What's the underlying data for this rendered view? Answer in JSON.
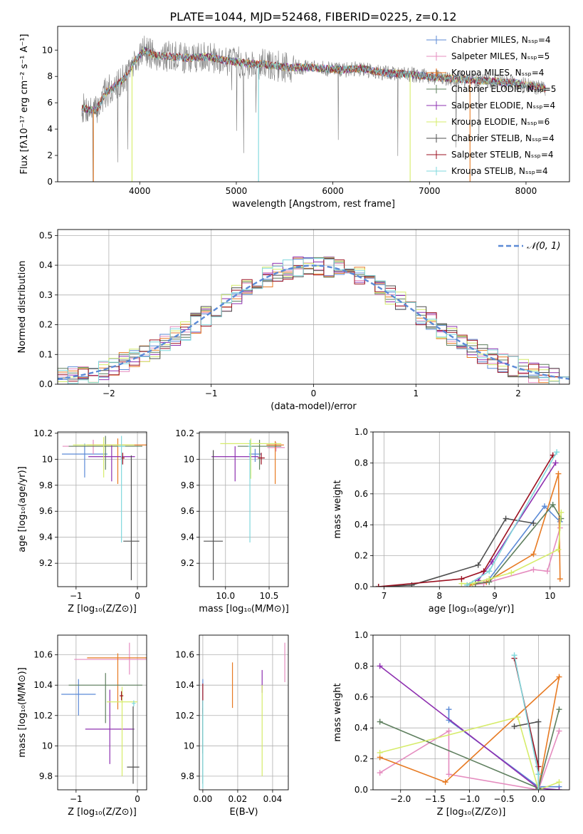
{
  "figure": {
    "title": "PLATE=1044, MJD=52468, FIBERID=0225, z=0.12"
  },
  "colors": {
    "Chabrier MILES": "#5b8ad6",
    "Salpeter MILES": "#e58cbf",
    "Kroupa MILES": "#e77a22",
    "Chabrier ELODIE": "#5e7f5e",
    "Salpeter ELODIE": "#8e30b0",
    "Kroupa ELODIE": "#d6ec6a",
    "Chabrier STELIB": "#4f4f4f",
    "Salpeter STELIB": "#9b1020",
    "Kroupa STELIB": "#7fd8dc",
    "normal_curve": "#5b8ad6"
  },
  "chart_data": [
    {
      "id": "spectrum",
      "type": "line",
      "title": "PLATE=1044, MJD=52468, FIBERID=0225, z=0.12",
      "xlabel": "wavelength [Angstrom, rest frame]",
      "ylabel": "Flux [fλ10⁻¹⁷ erg cm⁻² s⁻¹ A⁻¹]",
      "xlim": [
        3150,
        8450
      ],
      "ylim": [
        0,
        11.8
      ],
      "xticks": [
        4000,
        5000,
        6000,
        7000,
        8000
      ],
      "yticks": [
        0,
        2,
        4,
        6,
        8,
        10
      ],
      "grid": false,
      "legend_position": "top-right",
      "legend": [
        {
          "label": "Chabrier MILES, Nₛₛₚ=4",
          "series": "Chabrier MILES"
        },
        {
          "label": "Salpeter MILES, Nₛₛₚ=5",
          "series": "Salpeter MILES"
        },
        {
          "label": "Kroupa MILES, Nₛₛₚ=4",
          "series": "Kroupa MILES"
        },
        {
          "label": "Chabrier ELODIE, Nₛₛₚ=5",
          "series": "Chabrier ELODIE"
        },
        {
          "label": "Salpeter ELODIE, Nₛₛₚ=4",
          "series": "Salpeter ELODIE"
        },
        {
          "label": "Kroupa ELODIE, Nₛₛₚ=6",
          "series": "Kroupa ELODIE"
        },
        {
          "label": "Chabrier STELIB, Nₛₛₚ=4",
          "series": "Chabrier STELIB"
        },
        {
          "label": "Salpeter STELIB, Nₛₛₚ=4",
          "series": "Salpeter STELIB"
        },
        {
          "label": "Kroupa STELIB, Nₛₛₚ=4",
          "series": "Kroupa STELIB"
        }
      ],
      "continuum_x": [
        3400,
        3550,
        3650,
        3750,
        3850,
        3950,
        4050,
        4150,
        4300,
        4500,
        4700,
        4900,
        5100,
        5300,
        5500,
        5700,
        5900,
        6100,
        6300,
        6500,
        6700,
        6900,
        7100,
        7300,
        7500,
        7700,
        7900,
        8100,
        8200
      ],
      "continuum_y": [
        5.6,
        5.4,
        6.8,
        7.3,
        7.9,
        9.2,
        10.0,
        9.6,
        9.5,
        9.4,
        9.5,
        9.2,
        9.0,
        8.9,
        8.7,
        8.7,
        8.6,
        8.5,
        8.6,
        8.3,
        8.2,
        8.1,
        7.9,
        7.8,
        7.7,
        7.6,
        7.5,
        7.2,
        7.1
      ],
      "model_dips": [
        {
          "series": "Kroupa MILES",
          "x": 3520,
          "y": 0
        },
        {
          "series": "Kroupa MILES",
          "x": 7420,
          "y": 0
        },
        {
          "series": "Kroupa ELODIE",
          "x": 3920,
          "y": 0
        },
        {
          "series": "Kroupa ELODIE",
          "x": 6800,
          "y": 0
        },
        {
          "series": "Kroupa STELIB",
          "x": 5230,
          "y": 0
        }
      ]
    },
    {
      "id": "residual-histogram",
      "type": "line",
      "xlabel": "(data-model)/error",
      "ylabel": "Normed distribution",
      "xlim": [
        -2.5,
        2.5
      ],
      "ylim": [
        0,
        0.52
      ],
      "xticks": [
        -2,
        -1,
        0,
        1,
        2
      ],
      "xtick_labels": [
        "−2",
        "−1",
        "0",
        "1",
        "2"
      ],
      "yticks": [
        0.0,
        0.1,
        0.2,
        0.3,
        0.4,
        0.5
      ],
      "ytick_labels": [
        "0.0",
        "0.1",
        "0.2",
        "0.3",
        "0.4",
        "0.5"
      ],
      "grid": true,
      "legend_position": "top-right",
      "legend": [
        {
          "label": "𝒩(0, 1)",
          "series": "normal_curve",
          "style": "dashed"
        }
      ],
      "bin_width": 0.1,
      "curve": {
        "name": "𝒩(0, 1)",
        "mean": 0,
        "sigma": 1
      }
    },
    {
      "id": "age-vs-metallicity",
      "type": "scatter",
      "xlabel": "Z [log₁₀(Z/Z⊙)]",
      "ylabel": "age  [log₁₀(age/yr)]",
      "xlim": [
        -1.3,
        0.15
      ],
      "ylim": [
        9.02,
        10.21
      ],
      "xticks": [
        -1,
        0
      ],
      "xtick_labels": [
        "−1",
        "0"
      ],
      "yticks": [
        9.2,
        9.4,
        9.6,
        9.8,
        10.0,
        10.2
      ],
      "grid": true,
      "points": [
        {
          "series": "Chabrier MILES",
          "x": -0.86,
          "y": 10.04,
          "xerr": 0.37,
          "yerr_lo": 0.18,
          "yerr_hi": 0.08
        },
        {
          "series": "Salpeter MILES",
          "x": -0.72,
          "y": 10.1,
          "xerr": 0.5,
          "yerr_lo": 0.06,
          "yerr_hi": 0.05
        },
        {
          "series": "Kroupa MILES",
          "x": -0.32,
          "y": 10.11,
          "xerr": 0.5,
          "yerr_lo": 0.3,
          "yerr_hi": 0.05
        },
        {
          "series": "Chabrier ELODIE",
          "x": -0.52,
          "y": 10.1,
          "xerr": 0.6,
          "yerr_lo": 0.18,
          "yerr_hi": 0.08
        },
        {
          "series": "Salpeter ELODIE",
          "x": -0.42,
          "y": 10.02,
          "xerr": 0.38,
          "yerr_lo": 0.19,
          "yerr_hi": 0.09
        },
        {
          "series": "Kroupa ELODIE",
          "x": -0.55,
          "y": 10.11,
          "xerr": 0.5,
          "yerr_lo": 0.25,
          "yerr_hi": 0.06
        },
        {
          "series": "Chabrier STELIB",
          "x": -0.1,
          "y": 9.37,
          "xerr": 0.13,
          "yerr_lo": 0.3,
          "yerr_hi": 0.66
        },
        {
          "series": "Salpeter STELIB",
          "x": -0.24,
          "y": 10.01,
          "xerr": 0.03,
          "yerr_lo": 0.05,
          "yerr_hi": 0.04
        },
        {
          "series": "Kroupa STELIB",
          "x": -0.26,
          "y": 10.1,
          "xerr": 0.06,
          "yerr_lo": 0.74,
          "yerr_hi": 0.08
        }
      ]
    },
    {
      "id": "age-vs-mass",
      "type": "scatter",
      "xlabel": "mass [log₁₀(M/M⊙)]",
      "ylabel": "",
      "xlim": [
        9.7,
        10.72
      ],
      "ylim": [
        9.02,
        10.21
      ],
      "xticks": [
        10.0,
        10.5
      ],
      "xtick_labels": [
        "10.0",
        "10.5"
      ],
      "yticks": [
        9.2,
        9.4,
        9.6,
        9.8,
        10.0,
        10.2
      ],
      "grid": true,
      "points": [
        {
          "series": "Chabrier MILES",
          "x": 10.34,
          "y": 10.04,
          "xerr": 0.07,
          "yerr_lo": 0.06,
          "yerr_hi": 0.04
        },
        {
          "series": "Salpeter MILES",
          "x": 10.58,
          "y": 10.09,
          "xerr": 0.1,
          "yerr_lo": 0.03,
          "yerr_hi": 0.04
        },
        {
          "series": "Kroupa MILES",
          "x": 10.57,
          "y": 10.11,
          "xerr": 0.1,
          "yerr_lo": 0.3,
          "yerr_hi": 0.03
        },
        {
          "series": "Chabrier ELODIE",
          "x": 10.39,
          "y": 10.1,
          "xerr": 0.25,
          "yerr_lo": 0.18,
          "yerr_hi": 0.05
        },
        {
          "series": "Salpeter ELODIE",
          "x": 10.11,
          "y": 10.02,
          "xerr": 0.27,
          "yerr_lo": 0.19,
          "yerr_hi": 0.08
        },
        {
          "series": "Kroupa ELODIE",
          "x": 10.29,
          "y": 10.12,
          "xerr": 0.35,
          "yerr_lo": 0.27,
          "yerr_hi": 0.04
        },
        {
          "series": "Chabrier STELIB",
          "x": 9.86,
          "y": 9.37,
          "xerr": 0.11,
          "yerr_lo": 0.3,
          "yerr_hi": 0.7
        },
        {
          "series": "Salpeter STELIB",
          "x": 10.41,
          "y": 10.01,
          "xerr": 0.04,
          "yerr_lo": 0.05,
          "yerr_hi": 0.04
        },
        {
          "series": "Kroupa STELIB",
          "x": 10.28,
          "y": 10.1,
          "xerr": 0.02,
          "yerr_lo": 0.74,
          "yerr_hi": 0.05
        }
      ]
    },
    {
      "id": "mass-weight-vs-age",
      "type": "line",
      "xlabel": "age  [log₁₀(age/yr)]",
      "ylabel": "mass weight",
      "xlim": [
        6.8,
        10.35
      ],
      "ylim": [
        0,
        1.0
      ],
      "xticks": [
        7,
        8,
        9,
        10
      ],
      "yticks": [
        0.0,
        0.2,
        0.4,
        0.6,
        0.8,
        1.0
      ],
      "ytick_labels": [
        "0.0",
        "0.2",
        "0.4",
        "0.6",
        "0.8",
        "1.0"
      ],
      "grid": true,
      "series": [
        {
          "series": "Chabrier MILES",
          "x": [
            8.6,
            8.9,
            9.9,
            10.18
          ],
          "y": [
            0.02,
            0.05,
            0.52,
            0.42
          ]
        },
        {
          "series": "Salpeter MILES",
          "x": [
            8.5,
            8.8,
            9.7,
            9.95,
            10.18
          ],
          "y": [
            0.01,
            0.02,
            0.11,
            0.1,
            0.38
          ]
        },
        {
          "series": "Kroupa MILES",
          "x": [
            8.55,
            8.85,
            9.7,
            10.15,
            10.18
          ],
          "y": [
            0.01,
            0.03,
            0.21,
            0.73,
            0.05
          ]
        },
        {
          "series": "Chabrier ELODIE",
          "x": [
            8.65,
            8.9,
            10.05,
            10.2
          ],
          "y": [
            0.02,
            0.03,
            0.53,
            0.44
          ]
        },
        {
          "series": "Salpeter ELODIE",
          "x": [
            8.7,
            8.95,
            10.1
          ],
          "y": [
            0.04,
            0.16,
            0.8
          ]
        },
        {
          "series": "Kroupa ELODIE",
          "x": [
            8.4,
            8.6,
            8.9,
            9.3,
            10.15,
            10.2
          ],
          "y": [
            0.02,
            0.02,
            0.05,
            0.09,
            0.24,
            0.48
          ]
        },
        {
          "series": "Chabrier STELIB",
          "x": [
            6.9,
            7.5,
            8.7,
            9.2,
            9.7
          ],
          "y": [
            0.0,
            0.01,
            0.14,
            0.44,
            0.41
          ]
        },
        {
          "series": "Salpeter STELIB",
          "x": [
            6.9,
            8.4,
            8.8,
            10.05
          ],
          "y": [
            0.0,
            0.05,
            0.1,
            0.85
          ]
        },
        {
          "series": "Kroupa STELIB",
          "x": [
            8.5,
            8.9,
            10.12
          ],
          "y": [
            0.01,
            0.1,
            0.87
          ]
        }
      ]
    },
    {
      "id": "mass-vs-metallicity",
      "type": "scatter",
      "xlabel": "Z [log₁₀(Z/Z⊙)]",
      "ylabel": "mass [log₁₀(M/M⊙)]",
      "xlim": [
        -1.3,
        0.15
      ],
      "ylim": [
        9.71,
        10.73
      ],
      "xticks": [
        -1,
        0
      ],
      "xtick_labels": [
        "−1",
        "0"
      ],
      "yticks": [
        9.8,
        10.0,
        10.2,
        10.4,
        10.6
      ],
      "grid": true,
      "points": [
        {
          "series": "Chabrier MILES",
          "x": -0.96,
          "y": 10.34,
          "xerr": 0.28,
          "yerr_lo": 0.14,
          "yerr_hi": 0.1
        },
        {
          "series": "Salpeter MILES",
          "x": -0.13,
          "y": 10.57,
          "xerr": 0.9,
          "yerr_lo": 0.1,
          "yerr_hi": 0.11
        },
        {
          "series": "Kroupa MILES",
          "x": -0.32,
          "y": 10.58,
          "xerr": 0.5,
          "yerr_lo": 0.34,
          "yerr_hi": 0.03
        },
        {
          "series": "Chabrier ELODIE",
          "x": -0.52,
          "y": 10.4,
          "xerr": 0.6,
          "yerr_lo": 0.25,
          "yerr_hi": 0.08
        },
        {
          "series": "Salpeter ELODIE",
          "x": -0.45,
          "y": 10.11,
          "xerr": 0.4,
          "yerr_lo": 0.23,
          "yerr_hi": 0.26
        },
        {
          "series": "Kroupa ELODIE",
          "x": -0.25,
          "y": 10.29,
          "xerr": 0.25,
          "yerr_lo": 0.49,
          "yerr_hi": 0.1
        },
        {
          "series": "Chabrier STELIB",
          "x": -0.07,
          "y": 9.86,
          "xerr": 0.1,
          "yerr_lo": 0.11,
          "yerr_hi": 0.4
        },
        {
          "series": "Salpeter STELIB",
          "x": -0.26,
          "y": 10.33,
          "xerr": 0.03,
          "yerr_lo": 0.03,
          "yerr_hi": 0.03
        },
        {
          "series": "Kroupa STELIB",
          "x": -0.06,
          "y": 10.28,
          "xerr": 0.03,
          "yerr_lo": 0.02,
          "yerr_hi": 0.02
        }
      ]
    },
    {
      "id": "mass-vs-extinction",
      "type": "scatter",
      "xlabel": "E(B-V)",
      "ylabel": "",
      "xlim": [
        -0.002,
        0.049
      ],
      "ylim": [
        9.71,
        10.73
      ],
      "xticks": [
        0.0,
        0.02,
        0.04
      ],
      "xtick_labels": [
        "0.00",
        "0.02",
        "0.04"
      ],
      "yticks": [
        9.8,
        10.0,
        10.2,
        10.4,
        10.6
      ],
      "grid": true,
      "points": [
        {
          "series": "Chabrier MILES",
          "x": 0.0,
          "y": 10.34,
          "xerr": 0,
          "yerr_lo": 0.12,
          "yerr_hi": 0.1
        },
        {
          "series": "Salpeter MILES",
          "x": 0.047,
          "y": 10.57,
          "xerr": 0,
          "yerr_lo": 0.15,
          "yerr_hi": 0.11
        },
        {
          "series": "Kroupa MILES",
          "x": 0.017,
          "y": 10.4,
          "xerr": 0,
          "yerr_lo": 0.15,
          "yerr_hi": 0.15
        },
        {
          "series": "Chabrier ELODIE",
          "x": 0.0,
          "y": 10.2,
          "xerr": 0,
          "yerr_lo": 0.25,
          "yerr_hi": 0.1
        },
        {
          "series": "Salpeter ELODIE",
          "x": 0.034,
          "y": 10.4,
          "xerr": 0,
          "yerr_lo": 0.05,
          "yerr_hi": 0.1
        },
        {
          "series": "Kroupa ELODIE",
          "x": 0.034,
          "y": 10.3,
          "xerr": 0,
          "yerr_lo": 0.5,
          "yerr_hi": 0.1
        },
        {
          "series": "Chabrier STELIB",
          "x": 0.0,
          "y": 10.0,
          "xerr": 0,
          "yerr_lo": 0.25,
          "yerr_hi": 0.25
        },
        {
          "series": "Salpeter STELIB",
          "x": 0.0,
          "y": 10.33,
          "xerr": 0,
          "yerr_lo": 0.12,
          "yerr_hi": 0.08
        },
        {
          "series": "Kroupa STELIB",
          "x": 0.0,
          "y": 10.0,
          "xerr": 0,
          "yerr_lo": 0.28,
          "yerr_hi": 0.3
        }
      ]
    },
    {
      "id": "mass-weight-vs-metallicity",
      "type": "line",
      "xlabel": "Z [log₁₀(Z/Z⊙)]",
      "ylabel": "mass weight",
      "xlim": [
        -2.4,
        0.45
      ],
      "ylim": [
        0,
        1.0
      ],
      "xticks": [
        -2.0,
        -1.5,
        -1.0,
        -0.5,
        0.0
      ],
      "xtick_labels": [
        "−2.0",
        "−1.5",
        "−1.0",
        "−0.5",
        "0.0"
      ],
      "yticks": [
        0.0,
        0.2,
        0.4,
        0.6,
        0.8,
        1.0
      ],
      "ytick_labels": [
        "0.0",
        "0.2",
        "0.4",
        "0.6",
        "0.8",
        "1.0"
      ],
      "grid": true,
      "series": [
        {
          "series": "Chabrier MILES",
          "x": [
            -1.3,
            -1.3,
            0.0,
            0.3
          ],
          "y": [
            0.52,
            0.45,
            0.02,
            0.02
          ]
        },
        {
          "series": "Salpeter MILES",
          "x": [
            -2.3,
            -1.3,
            -1.3,
            0.0,
            0.3
          ],
          "y": [
            0.11,
            0.38,
            0.1,
            0.0,
            0.38
          ]
        },
        {
          "series": "Kroupa MILES",
          "x": [
            -2.3,
            -1.35,
            0.3,
            0.0
          ],
          "y": [
            0.21,
            0.05,
            0.73,
            0.01
          ]
        },
        {
          "series": "Chabrier ELODIE",
          "x": [
            -2.3,
            0.0,
            0.3
          ],
          "y": [
            0.44,
            0.01,
            0.52
          ]
        },
        {
          "series": "Salpeter ELODIE",
          "x": [
            -2.3,
            0.0,
            0.3
          ],
          "y": [
            0.8,
            0.01,
            0.0
          ]
        },
        {
          "series": "Kroupa ELODIE",
          "x": [
            -2.3,
            -0.3,
            0.0,
            0.3
          ],
          "y": [
            0.24,
            0.47,
            0.0,
            0.05
          ]
        },
        {
          "series": "Chabrier STELIB",
          "x": [
            -0.35,
            0.0,
            0.0
          ],
          "y": [
            0.41,
            0.44,
            0.01
          ]
        },
        {
          "series": "Salpeter STELIB",
          "x": [
            -0.35,
            0.0,
            0.0
          ],
          "y": [
            0.85,
            0.15,
            0.1
          ]
        },
        {
          "series": "Kroupa STELIB",
          "x": [
            -0.35,
            0.0,
            0.0
          ],
          "y": [
            0.87,
            0.1,
            0.0
          ]
        }
      ]
    }
  ]
}
